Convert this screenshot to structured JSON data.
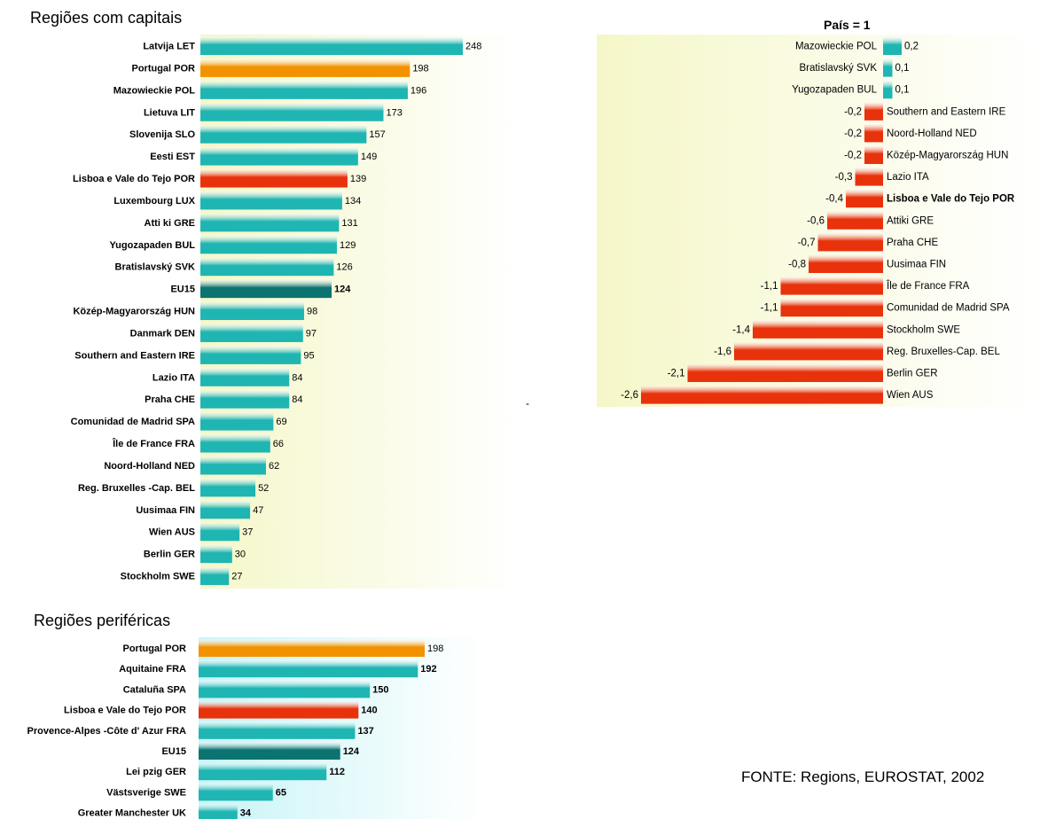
{
  "chart_data": [
    {
      "type": "bar",
      "orientation": "horizontal",
      "title": "Regiões com capitais",
      "categories": [
        "Latvija LET",
        "Portugal POR",
        "Mazowieckie POL",
        "Lietuva LIT",
        "Slovenija SLO",
        "Eesti EST",
        "Lisboa e Vale do Tejo POR",
        "Luxembourg LUX",
        "Atti ki GRE",
        "Yugozapaden BUL",
        "Bratislavský SVK",
        "EU15",
        "Közép-Magyarország HUN",
        "Danmark DEN",
        "Southern and Eastern IRE",
        "Lazio ITA",
        "Praha CHE",
        "Comunidad de Madrid SPA",
        "Île de France FRA",
        "Noord-Holland NED",
        "Reg. Bruxelles -Cap. BEL",
        "Uusimaa FIN",
        "Wien AUS",
        "Berlin GER",
        "Stockholm SWE"
      ],
      "values": [
        248,
        198,
        196,
        173,
        157,
        149,
        139,
        134,
        131,
        129,
        126,
        124,
        98,
        97,
        95,
        84,
        84,
        69,
        66,
        62,
        52,
        47,
        37,
        30,
        27
      ],
      "value_labels": [
        "248",
        "198",
        "196",
        "173",
        "157",
        "149",
        "139",
        "134",
        "131",
        "129",
        "126",
        "124",
        "98",
        "97",
        "95",
        "84",
        "84",
        "69",
        "66",
        "62",
        "52",
        "47",
        "37",
        "30",
        "27"
      ],
      "highlight": {
        "Portugal POR": "orange",
        "Lisboa e Vale do Tejo POR": "red",
        "EU15": "darkteal"
      },
      "colors": {
        "default": "#1fb5b2",
        "orange": "#f39200",
        "red": "#e8320c",
        "darkteal": "#0b7370",
        "background": "#fffde2"
      }
    },
    {
      "type": "bar",
      "orientation": "horizontal",
      "title": "País = 1",
      "categories": [
        "Mazowieckie POL",
        "Bratislavský SVK",
        "Yugozapaden BUL",
        "Southern and Eastern IRE",
        "Noord-Holland NED",
        "Közép-Magyarország HUN",
        "Lazio ITA",
        "Lisboa e Vale do Tejo POR",
        "Attiki GRE",
        "Praha CHE",
        "Uusimaa FIN",
        "Île de France FRA",
        "Comunidad de Madrid SPA",
        "Stockholm SWE",
        "Reg. Bruxelles-Cap. BEL",
        "Berlin GER",
        "Wien AUS"
      ],
      "values": [
        0.2,
        0.1,
        0.1,
        -0.2,
        -0.2,
        -0.2,
        -0.3,
        -0.4,
        -0.6,
        -0.7,
        -0.8,
        -1.1,
        -1.1,
        -1.4,
        -1.6,
        -2.1,
        -2.6
      ],
      "value_labels": [
        "0,2",
        "0,1",
        "0,1",
        "-0,2",
        "-0,2",
        "-0,2",
        "-0,3",
        "-0,4",
        "-0,6",
        "-0,7",
        "-0,8",
        "-1,1",
        "-1,1",
        "-1,4",
        "-1,6",
        "-2,1",
        "-2,6"
      ],
      "bold_categories": [
        "Lisboa e Vale do Tejo POR"
      ],
      "colors": {
        "positive": "#1fb5b2",
        "negative": "#e8320c",
        "background": "#fffde2"
      }
    },
    {
      "type": "bar",
      "orientation": "horizontal",
      "title": "Regiões periféricas",
      "categories": [
        "Portugal POR",
        "Aquitaine FRA",
        "Cataluña SPA",
        "Lisboa e Vale do Tejo POR",
        "Provence-Alpes -Côte d' Azur FRA",
        "EU15",
        "Lei pzig GER",
        "Västsverige SWE",
        "Greater Manchester UK"
      ],
      "values": [
        198,
        192,
        150,
        140,
        137,
        124,
        112,
        65,
        34
      ],
      "value_labels": [
        "198",
        "192",
        "150",
        "140",
        "137",
        "124",
        "112",
        "65",
        "34"
      ],
      "highlight": {
        "Portugal POR": "orange",
        "Lisboa e Vale do Tejo POR": "red",
        "EU15": "darkteal"
      },
      "colors": {
        "default": "#1fb5b2",
        "orange": "#f39200",
        "red": "#e8320c",
        "darkteal": "#0b7370",
        "background": "#e4fbfc"
      }
    }
  ],
  "source": "FONTE: Regions, EUROSTAT, 2002",
  "stray_mark": "-"
}
